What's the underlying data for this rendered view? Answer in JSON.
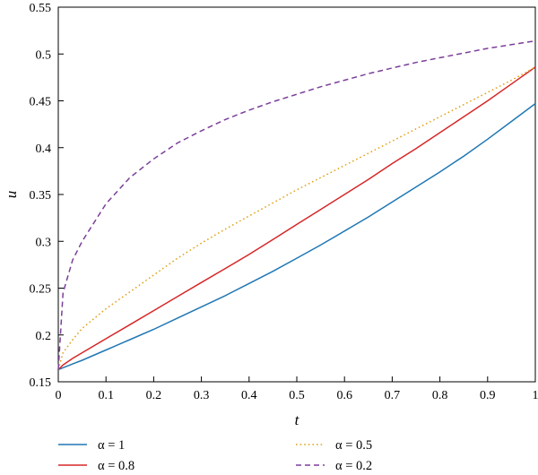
{
  "chart_data": {
    "type": "line",
    "xlabel": "t",
    "ylabel": "u",
    "xlim": [
      0,
      1
    ],
    "ylim": [
      0.15,
      0.55
    ],
    "xticks": [
      "0",
      "0.1",
      "0.2",
      "0.3",
      "0.4",
      "0.5",
      "0.6",
      "0.7",
      "0.8",
      "0.9",
      "1"
    ],
    "yticks": [
      "0.15",
      "0.2",
      "0.25",
      "0.3",
      "0.35",
      "0.4",
      "0.45",
      "0.5",
      "0.55"
    ],
    "grid": false,
    "legend_position": "bottom",
    "x": [
      0,
      0.01,
      0.03,
      0.05,
      0.1,
      0.15,
      0.2,
      0.25,
      0.3,
      0.35,
      0.4,
      0.45,
      0.5,
      0.55,
      0.6,
      0.65,
      0.7,
      0.75,
      0.8,
      0.85,
      0.9,
      0.95,
      1
    ],
    "series": [
      {
        "name": "α = 1",
        "color": "#1f77b4",
        "dash": "solid",
        "values": [
          0.163,
          0.165,
          0.169,
          0.173,
          0.184,
          0.195,
          0.206,
          0.218,
          0.23,
          0.242,
          0.255,
          0.268,
          0.282,
          0.296,
          0.311,
          0.326,
          0.342,
          0.358,
          0.374,
          0.391,
          0.409,
          0.428,
          0.447
        ]
      },
      {
        "name": "α = 0.8",
        "color": "#d62728",
        "dash": "solid",
        "values": [
          0.163,
          0.168,
          0.175,
          0.181,
          0.196,
          0.211,
          0.226,
          0.241,
          0.256,
          0.271,
          0.286,
          0.302,
          0.318,
          0.334,
          0.35,
          0.366,
          0.383,
          0.399,
          0.416,
          0.433,
          0.45,
          0.468,
          0.486
        ]
      },
      {
        "name": "α = 0.5",
        "color": "#e0a21a",
        "dash": "dotted",
        "values": [
          0.163,
          0.181,
          0.195,
          0.207,
          0.228,
          0.246,
          0.264,
          0.282,
          0.298,
          0.313,
          0.327,
          0.341,
          0.355,
          0.368,
          0.381,
          0.394,
          0.407,
          0.42,
          0.433,
          0.446,
          0.459,
          0.472,
          0.486
        ]
      },
      {
        "name": "α = 0.2",
        "color": "#7b3f99",
        "dash": "dashed",
        "values": [
          0.163,
          0.245,
          0.28,
          0.3,
          0.34,
          0.368,
          0.388,
          0.405,
          0.418,
          0.43,
          0.44,
          0.449,
          0.457,
          0.465,
          0.472,
          0.479,
          0.485,
          0.491,
          0.496,
          0.501,
          0.506,
          0.51,
          0.514
        ]
      }
    ]
  }
}
